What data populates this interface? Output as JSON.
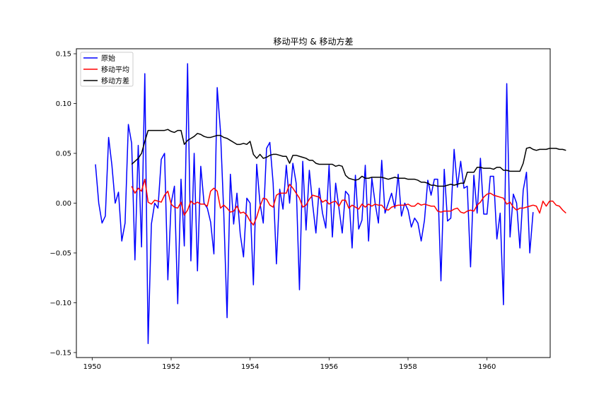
{
  "chart_data": {
    "type": "line",
    "title": "移动平均 & 移动方差",
    "xlabel": "",
    "ylabel": "",
    "xlim": [
      1949.6,
      1961.6
    ],
    "ylim": [
      -0.155,
      0.155
    ],
    "grid": false,
    "legend_position": "top-left",
    "x_ticks": [
      {
        "value": 1950,
        "label": "1950"
      },
      {
        "value": 1952,
        "label": "1952"
      },
      {
        "value": 1954,
        "label": "1954"
      },
      {
        "value": 1956,
        "label": "1956"
      },
      {
        "value": 1958,
        "label": "1958"
      },
      {
        "value": 1960,
        "label": "1960"
      }
    ],
    "y_ticks": [
      {
        "value": 0.15,
        "label": "0.15"
      },
      {
        "value": 0.1,
        "label": "0.10"
      },
      {
        "value": 0.05,
        "label": "0.05"
      },
      {
        "value": 0.0,
        "label": "0.00"
      },
      {
        "value": -0.05,
        "label": "−0.05"
      },
      {
        "value": -0.1,
        "label": "−0.10"
      },
      {
        "value": -0.15,
        "label": "−0.15"
      }
    ],
    "x_start": "1950-02",
    "series": [
      {
        "name": "原始",
        "color": "#0000ff",
        "start_index": 0,
        "values": [
          0.039,
          0.0,
          -0.02,
          -0.013,
          0.066,
          0.038,
          0.0,
          0.011,
          -0.038,
          -0.02,
          0.079,
          0.06,
          -0.057,
          0.058,
          -0.044,
          0.13,
          -0.141,
          -0.021,
          0.0,
          -0.005,
          0.044,
          0.05,
          -0.077,
          0.0,
          0.017,
          -0.101,
          0.024,
          -0.043,
          0.14,
          -0.058,
          0.05,
          -0.068,
          0.037,
          0.0,
          -0.005,
          -0.019,
          -0.051,
          0.116,
          0.072,
          -0.01,
          -0.115,
          0.029,
          -0.021,
          0.01,
          -0.031,
          -0.054,
          0.005,
          0.0,
          -0.082,
          0.039,
          0.0,
          -0.02,
          0.055,
          0.061,
          0.02,
          -0.061,
          0.014,
          -0.006,
          0.038,
          0.0,
          0.04,
          0.02,
          -0.087,
          0.042,
          -0.027,
          0.033,
          -0.001,
          -0.03,
          0.015,
          -0.01,
          -0.025,
          0.038,
          -0.034,
          0.02,
          -0.005,
          -0.03,
          0.012,
          0.008,
          -0.045,
          0.028,
          -0.026,
          -0.017,
          0.038,
          -0.038,
          0.025,
          0.0,
          -0.02,
          0.043,
          -0.01,
          0.0,
          0.01,
          -0.005,
          0.029,
          -0.013,
          0.0,
          -0.007,
          -0.024,
          -0.015,
          -0.02,
          -0.038,
          -0.017,
          0.023,
          0.008,
          0.024,
          0.024,
          -0.078,
          0.034,
          -0.018,
          -0.015,
          0.054,
          0.016,
          0.042,
          0.015,
          0.017,
          -0.064,
          0.028,
          -0.01,
          0.045,
          -0.011,
          -0.011,
          0.027,
          0.027,
          -0.036,
          -0.01,
          -0.102,
          0.12,
          -0.034,
          0.009,
          0.0,
          -0.045,
          0.013,
          0.031,
          -0.05,
          -0.009
        ]
      },
      {
        "name": "移动平均",
        "color": "#ff0000",
        "start_index": 11,
        "values": [
          0.017,
          0.01,
          0.015,
          0.012,
          0.024,
          0.001,
          -0.001,
          0.003,
          0.002,
          0.001,
          0.008,
          0.012,
          -0.001,
          -0.004,
          -0.005,
          0.001,
          -0.012,
          -0.007,
          0.002,
          -0.001,
          0.001,
          -0.001,
          -0.001,
          -0.003,
          0.012,
          0.015,
          0.012,
          -0.005,
          -0.002,
          -0.005,
          -0.009,
          -0.008,
          -0.003,
          -0.01,
          -0.009,
          -0.012,
          -0.018,
          -0.022,
          -0.014,
          -0.003,
          0.005,
          0.004,
          -0.002,
          -0.004,
          0.008,
          0.01,
          0.01,
          0.01,
          0.019,
          0.015,
          0.01,
          0.005,
          -0.004,
          -0.002,
          0.004,
          0.008,
          0.007,
          0.006,
          0.001,
          0.003,
          -0.001,
          0.001,
          0.002,
          -0.003,
          0.003,
          0.003,
          -0.005,
          -0.002,
          -0.004,
          -0.006,
          -0.001,
          -0.004,
          -0.001,
          -0.003,
          -0.001,
          -0.002,
          -0.002,
          -0.006,
          -0.007,
          -0.004,
          -0.003,
          -0.002,
          -0.002,
          -0.002,
          -0.001,
          -0.003,
          -0.003,
          0.0,
          -0.002,
          -0.001,
          -0.002,
          -0.003,
          -0.003,
          -0.008,
          -0.009,
          -0.008,
          -0.008,
          -0.008,
          -0.006,
          -0.005,
          -0.009,
          -0.01,
          -0.008,
          -0.007,
          -0.008,
          -0.002,
          0.001,
          0.006,
          0.009,
          0.01,
          0.008,
          0.007,
          0.006,
          0.005,
          -0.001,
          0.001,
          -0.004,
          -0.007,
          -0.005,
          -0.005,
          -0.004,
          -0.003,
          -0.002,
          -0.003,
          -0.01,
          0.002,
          -0.003,
          0.002,
          0.002,
          -0.002,
          -0.003,
          -0.007,
          -0.01
        ]
      },
      {
        "name": "移动方差",
        "color": "#000000",
        "start_index": 11,
        "values": [
          0.039,
          0.042,
          0.045,
          0.05,
          0.062,
          0.073,
          0.073,
          0.073,
          0.073,
          0.073,
          0.073,
          0.074,
          0.072,
          0.071,
          0.073,
          0.073,
          0.059,
          0.063,
          0.065,
          0.067,
          0.07,
          0.069,
          0.067,
          0.066,
          0.066,
          0.067,
          0.068,
          0.068,
          0.066,
          0.065,
          0.063,
          0.061,
          0.059,
          0.059,
          0.06,
          0.059,
          0.062,
          0.049,
          0.045,
          0.049,
          0.045,
          0.046,
          0.048,
          0.049,
          0.049,
          0.048,
          0.047,
          0.047,
          0.04,
          0.048,
          0.048,
          0.047,
          0.046,
          0.045,
          0.043,
          0.043,
          0.04,
          0.039,
          0.039,
          0.039,
          0.039,
          0.039,
          0.037,
          0.038,
          0.037,
          0.028,
          0.025,
          0.024,
          0.023,
          0.024,
          0.027,
          0.025,
          0.025,
          0.026,
          0.026,
          0.026,
          0.026,
          0.025,
          0.024,
          0.025,
          0.026,
          0.025,
          0.025,
          0.025,
          0.024,
          0.024,
          0.024,
          0.023,
          0.021,
          0.021,
          0.02,
          0.018,
          0.018,
          0.017,
          0.017,
          0.017,
          0.018,
          0.019,
          0.018,
          0.019,
          0.02,
          0.02,
          0.031,
          0.031,
          0.031,
          0.036,
          0.036,
          0.035,
          0.035,
          0.035,
          0.034,
          0.036,
          0.036,
          0.033,
          0.033,
          0.032,
          0.032,
          0.032,
          0.032,
          0.04,
          0.055,
          0.056,
          0.054,
          0.053,
          0.054,
          0.054,
          0.054,
          0.055,
          0.055,
          0.055,
          0.054,
          0.054,
          0.053
        ]
      }
    ]
  }
}
